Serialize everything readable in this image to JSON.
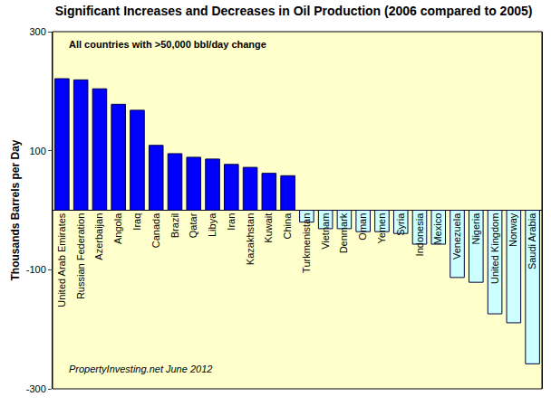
{
  "chart_data": {
    "type": "bar",
    "title": "Significant Increases and Decreases in Oil Production (2006 compared to 2005)",
    "ylabel": "Thousands Barrels per Day",
    "annotations": [
      "All countries with >50,000 bbl/day change",
      "PropertyInvesting.net June 2012"
    ],
    "categories": [
      "United Arab Emirates",
      "Russian Federation",
      "Azerbaijan",
      "Angola",
      "Iraq",
      "Canada",
      "Brazil",
      "Qatar",
      "Libya",
      "Iran",
      "Kazakhstan",
      "Kuwait",
      "China",
      "Turkmenistan",
      "Vietnam",
      "Denmark",
      "Oman",
      "Yemen",
      "Syria",
      "Indonesia",
      "Mexico",
      "Venezuela",
      "Nigeria",
      "United Kingdom",
      "Norway",
      "Saudi Arabia"
    ],
    "values": [
      221,
      219,
      204,
      178,
      168,
      109,
      95,
      89,
      86,
      77,
      72,
      62,
      58,
      -20,
      -31,
      -31,
      -36,
      -36,
      -39,
      -57,
      -57,
      -113,
      -121,
      -174,
      -189,
      -258
    ],
    "colors": [
      "#0000ff",
      "#0000ff",
      "#0000ff",
      "#0000ff",
      "#0000ff",
      "#0000ff",
      "#0000ff",
      "#0000ff",
      "#0000ff",
      "#0000ff",
      "#0000ff",
      "#0000ff",
      "#0000ff",
      "#ccffff",
      "#ccffff",
      "#ccffff",
      "#ccffff",
      "#ccffff",
      "#ccffff",
      "#ccffff",
      "#ccffff",
      "#ccffff",
      "#ccffff",
      "#ccffff",
      "#ccffff",
      "#ccffff"
    ],
    "ylim": [
      -300,
      300
    ],
    "yticks": [
      -300,
      -100,
      100,
      300
    ],
    "grid": false
  }
}
